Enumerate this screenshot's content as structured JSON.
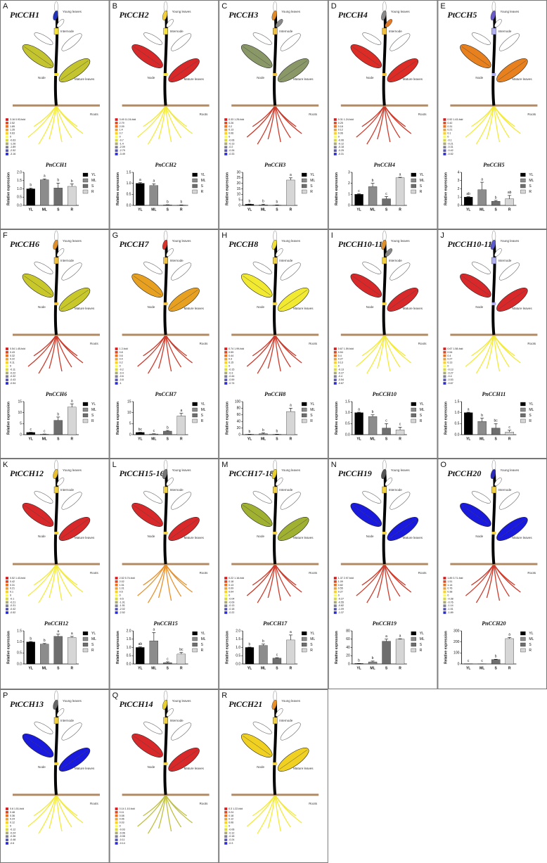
{
  "plant_labels": {
    "young": "Young leaves",
    "internode": "Internode",
    "node": "Node",
    "mature": "Mature leaves",
    "roots": "Roots"
  },
  "chart_common": {
    "y_label": "Relative expression",
    "categories": [
      "YL",
      "ML",
      "S",
      "R"
    ]
  },
  "panels": [
    {
      "letter": "A",
      "title": "PtCCH1",
      "colors": {
        "young": "#2233bb",
        "young2": "#ffffff",
        "internode": "#f5e13a",
        "mature": "#c3c42e",
        "roots": "#f3ea3a"
      },
      "legend": [
        "3.16 0.93-fold",
        "2.52",
        "1.89",
        "1.26",
        "0.63",
        "0",
        "-0.63",
        "-1.26",
        "-1.89",
        "-2.52",
        "-3.16"
      ],
      "chart": {
        "title": "PnCCH1",
        "ylim": [
          0,
          2
        ],
        "yticks": [
          {
            "value": 0,
            "label": "0.0"
          },
          0.5,
          {
            "value": 1,
            "label": "1.0"
          },
          1.5,
          {
            "value": 2,
            "label": "2.0"
          }
        ],
        "values": [
          1.0,
          1.55,
          1.05,
          1.15
        ],
        "errors": [
          0.05,
          0.05,
          0.3,
          0.15
        ],
        "letters": [
          "b",
          "a",
          "b",
          "b"
        ]
      }
    },
    {
      "letter": "B",
      "title": "PtCCH2",
      "colors": {
        "young": "#f2d03a",
        "young2": "#ffffff",
        "internode": "#f5e13a",
        "mature": "#d9282a",
        "roots": "#f3ea3a"
      },
      "legend": [
        "3.49 11.24-fold",
        "2.79",
        "2.09",
        "1.4",
        "0.7",
        "0",
        "-0.7",
        "-1.4",
        "-2.09",
        "-2.79",
        "-3.49"
      ],
      "chart": {
        "title": "PnCCH2",
        "ylim": [
          0,
          1.5
        ],
        "yticks": [
          {
            "value": 0,
            "label": "0.0"
          },
          0.5,
          {
            "value": 1,
            "label": "1.0"
          },
          1.5
        ],
        "values": [
          1.0,
          0.9,
          0.02,
          0.01
        ],
        "errors": [
          0.03,
          0.08,
          0.01,
          0.01
        ],
        "letters": [
          "a",
          "a",
          "b",
          "b"
        ]
      }
    },
    {
      "letter": "C",
      "title": "PtCCH3",
      "colors": {
        "young": "#e08a2a",
        "young2": "#888888",
        "internode": "#f0c040",
        "mature": "#8a9868",
        "roots": "#cc3a2a"
      },
      "legend": [
        "0.33 1.25-fold",
        "0.26",
        "0.2",
        "0.13",
        "0.06",
        "0",
        "-0.06",
        "-0.13",
        "-0.2",
        "-0.26",
        "-0.33"
      ],
      "chart": {
        "title": "PnCCH3",
        "ylim": [
          0,
          30
        ],
        "yticks": [
          0,
          5,
          10,
          15,
          20,
          25,
          30
        ],
        "values": [
          1.0,
          0.5,
          0.2,
          23
        ],
        "errors": [
          0.2,
          0.6,
          0.2,
          2
        ],
        "letters": [
          "b",
          "b",
          "b",
          "a"
        ]
      }
    },
    {
      "letter": "D",
      "title": "PtCCH4",
      "colors": {
        "young": "#888888",
        "young2": "#e07a2a",
        "internode": "#f0c040",
        "mature": "#dd2b26",
        "roots": "#cc3a2a"
      },
      "legend": [
        "0.31 1.24-fold",
        "0.25",
        "0.18",
        "0.12",
        "0.06",
        "0",
        "-0.06",
        "-0.12",
        "-0.18",
        "-0.25",
        "-0.31"
      ],
      "chart": {
        "title": "PnCCH4",
        "ylim": [
          0,
          3
        ],
        "yticks": [
          0,
          1,
          2,
          3
        ],
        "values": [
          1.0,
          1.7,
          0.6,
          2.5
        ],
        "errors": [
          0.05,
          0.3,
          0.2,
          0.05
        ],
        "letters": [
          "c",
          "b",
          "c",
          "a"
        ]
      }
    },
    {
      "letter": "E",
      "title": "PtCCH5",
      "colors": {
        "young": "#6a5acd",
        "young2": "#ffffff",
        "internode": "#b0b0f0",
        "mature": "#e8801e",
        "roots": "#f3ea3a"
      },
      "legend": [
        "0.52 1.43-fold",
        "0.42",
        "0.31",
        "0.21",
        "0.1",
        "0",
        "-0.1",
        "-0.21",
        "-0.31",
        "-0.42",
        "-0.52"
      ],
      "chart": {
        "title": "PnCCH5",
        "ylim": [
          0,
          4
        ],
        "yticks": [
          0,
          1,
          2,
          3,
          4
        ],
        "values": [
          1.0,
          1.9,
          0.5,
          0.8
        ],
        "errors": [
          0.05,
          0.9,
          0.1,
          0.4
        ],
        "letters": [
          "ab",
          "a",
          "b",
          "ab"
        ]
      }
    },
    {
      "letter": "F",
      "title": "PtCCH6",
      "colors": {
        "young": "#e0902a",
        "young2": "#ffffff",
        "internode": "#f0c040",
        "mature": "#c8c82a",
        "roots": "#cc3a2a"
      },
      "legend": [
        "0.54 1.45-fold",
        "0.43",
        "0.32",
        "0.22",
        "0.11",
        "0",
        "-0.11",
        "-0.22",
        "-0.32",
        "-0.43",
        "-0.54"
      ],
      "chart": {
        "title": "PnCCH6",
        "ylim": [
          0,
          15
        ],
        "yticks": [
          0,
          5,
          10,
          15
        ],
        "values": [
          1,
          0.2,
          6.5,
          12.5
        ],
        "errors": [
          0.1,
          0.1,
          1.5,
          1.5
        ],
        "letters": [
          "c",
          "c",
          "b",
          "a"
        ]
      }
    },
    {
      "letter": "G",
      "title": "PtCCH7",
      "colors": {
        "young": "#d8342a",
        "young2": "#ffffff",
        "internode": "#f0c040",
        "mature": "#e8a020",
        "roots": "#cc3a2a"
      },
      "legend": [
        "1 2-fold",
        "0.8",
        "0.6",
        "0.4",
        "0.2",
        "0",
        "-0.2",
        "-0.4",
        "-0.6",
        "-0.8",
        "-1"
      ],
      "chart": {
        "title": "PnCCH7",
        "ylim": [
          0,
          15
        ],
        "yticks": [
          0,
          5,
          10,
          15
        ],
        "values": [
          1,
          0.3,
          1.6,
          8.5
        ],
        "errors": [
          0.1,
          0.1,
          0.3,
          1.2
        ],
        "letters": [
          "bc",
          "c",
          "b",
          "a"
        ]
      }
    },
    {
      "letter": "H",
      "title": "PtCCH8",
      "colors": {
        "young": "#f0e03a",
        "young2": "#ffffff",
        "internode": "#f0d040",
        "mature": "#f2ea30",
        "roots": "#cc3a2a"
      },
      "legend": [
        "0.74 1.99-fold",
        "0.59",
        "0.44",
        "0.3",
        "0.15",
        "0",
        "-0.15",
        "-0.3",
        "-0.44",
        "-0.59",
        "-0.74"
      ],
      "chart": {
        "title": "PnCCH8",
        "ylim": [
          0,
          100
        ],
        "yticks": [
          0,
          20,
          40,
          60,
          80,
          100
        ],
        "values": [
          1,
          3,
          1,
          70
        ],
        "errors": [
          0.2,
          2,
          0.5,
          10
        ],
        "letters": [
          "b",
          "b",
          "b",
          "a"
        ]
      }
    },
    {
      "letter": "I",
      "title": "PtCCH10-11",
      "colors": {
        "young": "#e0902a",
        "young2": "#888888",
        "internode": "#f0d040",
        "mature": "#d9282a",
        "roots": "#f3ea3a"
      },
      "legend": [
        "0.67 1.59-fold",
        "0.54",
        "0.4",
        "0.27",
        "0.13",
        "0",
        "-0.13",
        "-0.27",
        "-0.4",
        "-0.54",
        "-0.67"
      ],
      "chart": {
        "title": "PnCCH10",
        "ylim": [
          0,
          1.5
        ],
        "yticks": [
          {
            "value": 0,
            "label": "0.0"
          },
          0.5,
          {
            "value": 1,
            "label": "1.0"
          },
          1.5
        ],
        "values": [
          1.0,
          0.82,
          0.3,
          0.22
        ],
        "errors": [
          0.02,
          0.08,
          0.2,
          0.12
        ],
        "letters": [
          "a",
          "b",
          "c",
          "c"
        ]
      }
    },
    {
      "letter": "J",
      "title": "PtCCH10-11",
      "colors": {
        "young": "#5a5ad0",
        "young2": "#ffffff",
        "internode": "#b0b0f0",
        "mature": "#d9282a",
        "roots": "#f3ea3a"
      },
      "legend": [
        "0.67 1.58-fold",
        "0.54",
        "0.4",
        "0.27",
        "0.13",
        "0",
        "-0.13",
        "-0.27",
        "-0.4",
        "-0.53",
        "-0.67"
      ],
      "chart": {
        "title": "PnCCH11",
        "ylim": [
          0,
          1.5
        ],
        "yticks": [
          {
            "value": 0,
            "label": "0.0"
          },
          0.5,
          {
            "value": 1,
            "label": "1.0"
          },
          1.5
        ],
        "values": [
          1.0,
          0.6,
          0.3,
          0.12
        ],
        "errors": [
          0.02,
          0.15,
          0.2,
          0.08
        ],
        "letters": [
          "a",
          "b",
          "bc",
          "c"
        ]
      }
    },
    {
      "letter": "K",
      "title": "PtCCH12",
      "colors": {
        "young": "#e8c030",
        "young2": "#ffffff",
        "internode": "#f0d040",
        "mature": "#d9282a",
        "roots": "#f3ea3a"
      },
      "legend": [
        "0.52 1.43-fold",
        "0.42",
        "0.31",
        "0.21",
        "0.1",
        "0",
        "-0.1",
        "-0.21",
        "-0.31",
        "-0.42",
        "-0.52"
      ],
      "chart": {
        "title": "PnCCH12",
        "ylim": [
          0,
          1.5
        ],
        "yticks": [
          {
            "value": 0,
            "label": "0.0"
          },
          0.5,
          {
            "value": 1,
            "label": "1.0"
          },
          1.5
        ],
        "values": [
          1.0,
          0.9,
          1.25,
          1.2
        ],
        "errors": [
          0.02,
          0.03,
          0.1,
          0.05
        ],
        "letters": [
          "b",
          "b",
          "a",
          "a"
        ]
      }
    },
    {
      "letter": "L",
      "title": "PtCCH15-16",
      "colors": {
        "young": "#777777",
        "young2": "#ffffff",
        "internode": "#f0d040",
        "mature": "#d9282a",
        "roots": "#e8902a"
      },
      "legend": [
        "2.52 5.74-fold",
        "2.02",
        "1.51",
        "1.01",
        "0.5",
        "0",
        "-0.5",
        "-1.01",
        "-1.51",
        "-2.02",
        "-2.52"
      ],
      "chart": {
        "title": "PnCCH15",
        "ylim": [
          0,
          2
        ],
        "yticks": [
          {
            "value": 0,
            "label": "0.0"
          },
          0.5,
          {
            "value": 1,
            "label": "1.0"
          },
          1.5,
          {
            "value": 2,
            "label": "2.0"
          }
        ],
        "values": [
          1.0,
          1.4,
          0.08,
          0.6
        ],
        "errors": [
          0.03,
          0.5,
          0.05,
          0.1
        ],
        "letters": [
          "ab",
          "a",
          "c",
          "bc"
        ]
      }
    },
    {
      "letter": "M",
      "title": "PtCCH17-18",
      "colors": {
        "young": "#e8d030",
        "young2": "#ffffff",
        "internode": "#f0d040",
        "mature": "#a0b030",
        "roots": "#cc3a2a"
      },
      "legend": [
        "0.22 1.16-fold",
        "0.18",
        "0.13",
        "0.09",
        "0.04",
        "0",
        "-0.04",
        "-0.09",
        "-0.13",
        "-0.18",
        "-0.22"
      ],
      "chart": {
        "title": "PnCCH17",
        "ylim": [
          0,
          2
        ],
        "yticks": [
          {
            "value": 0,
            "label": "0.0"
          },
          0.5,
          {
            "value": 1,
            "label": "1.0"
          },
          1.5,
          {
            "value": 2,
            "label": "2.0"
          }
        ],
        "values": [
          1.0,
          1.12,
          0.35,
          1.45
        ],
        "errors": [
          0.02,
          0.08,
          0.03,
          0.3
        ],
        "letters": [
          "b",
          "b",
          "c",
          "a"
        ]
      }
    },
    {
      "letter": "N",
      "title": "PtCCH19",
      "colors": {
        "young": "#555555",
        "young2": "#ffffff",
        "internode": "#f0d040",
        "mature": "#1a1adf",
        "roots": "#cc3a2a"
      },
      "legend": [
        "1.37 2.97-fold",
        "1.09",
        "0.82",
        "0.55",
        "0.27",
        "0",
        "-0.27",
        "-0.55",
        "-0.82",
        "-1.09",
        "-1.37"
      ],
      "chart": {
        "title": "PnCCH19",
        "ylim": [
          0,
          80
        ],
        "yticks": [
          0,
          20,
          40,
          60,
          80
        ],
        "values": [
          1,
          5,
          55,
          60
        ],
        "errors": [
          0.2,
          2,
          5,
          1
        ],
        "letters": [
          "b",
          "b",
          "a",
          "a"
        ]
      }
    },
    {
      "letter": "O",
      "title": "PtCCH20",
      "colors": {
        "young": "#2a2abf",
        "young2": "#ffffff",
        "internode": "#f0d040",
        "mature": "#1a1adf",
        "roots": "#cc3a2a"
      },
      "legend": [
        "1.89 3.71-fold",
        "1.51",
        "1.14",
        "0.76",
        "0.38",
        "0",
        "-0.38",
        "-0.76",
        "-1.14",
        "-1.51",
        "-1.89"
      ],
      "chart": {
        "title": "PnCCH20",
        "ylim": [
          0,
          300
        ],
        "yticks": [
          0,
          100,
          200,
          300
        ],
        "values": [
          1,
          0.8,
          40,
          230
        ],
        "errors": [
          0.1,
          0.2,
          3,
          10
        ],
        "letters": [
          "c",
          "c",
          "b",
          "a"
        ]
      }
    },
    {
      "letter": "P",
      "title": "PtCCH13",
      "colors": {
        "young": "#666666",
        "young2": "#ffffff",
        "internode": "#f0d040",
        "mature": "#1a1adf",
        "roots": "#f3ea3a"
      },
      "legend": [
        "0.6 1.51-fold",
        "0.48",
        "0.36",
        "0.24",
        "0.12",
        "0",
        "-0.12",
        "-0.24",
        "-0.36",
        "-0.48",
        "-0.6"
      ]
    },
    {
      "letter": "Q",
      "title": "PtCCH14",
      "colors": {
        "young": "#e8d030",
        "young2": "#ffffff",
        "internode": "#f0d040",
        "mature": "#d9282a",
        "roots": "#c0c040"
      },
      "legend": [
        "0.14 1.10-fold",
        "0.11",
        "0.08",
        "0.06",
        "0.03",
        "0",
        "-0.03",
        "-0.06",
        "-0.08",
        "-0.11",
        "-0.14"
      ]
    },
    {
      "letter": "R",
      "title": "PtCCH21",
      "colors": {
        "young": "#e8902a",
        "young2": "#ffffff",
        "internode": "#f0d040",
        "mature": "#f0d020",
        "roots": "#f3ea3a"
      },
      "legend": [
        "0.3 1.22-fold",
        "0.24",
        "0.18",
        "0.12",
        "0.06",
        "0",
        "-0.06",
        "-0.12",
        "-0.18",
        "-0.24",
        "-0.3"
      ]
    }
  ]
}
